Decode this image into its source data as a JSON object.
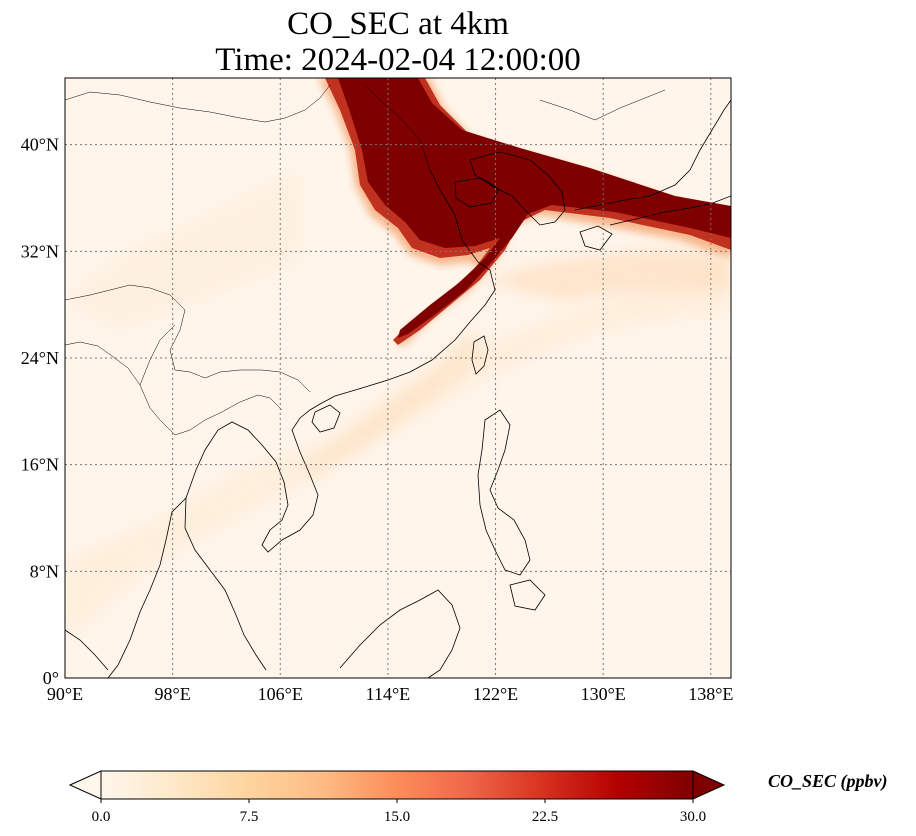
{
  "title": {
    "line1": "CO_SEC at 4km",
    "line2": "Time: 2024-02-04 12:00:00"
  },
  "map": {
    "lon_range": [
      90,
      139.5
    ],
    "lat_range": [
      0,
      45
    ],
    "lon_ticks": [
      "90°E",
      "98°E",
      "106°E",
      "114°E",
      "122°E",
      "130°E",
      "138°E"
    ],
    "lat_ticks": [
      "0°",
      "8°N",
      "16°N",
      "24°N",
      "32°N",
      "40°N"
    ],
    "gridlines": "dotted",
    "colormap": "OrRd",
    "plume_color": "#7f0000",
    "background_color": "#fff5eb"
  },
  "colorbar": {
    "label": "CO_SEC (ppbv)",
    "min": 0.0,
    "max": 30.0,
    "ticks": [
      "0.0",
      "7.5",
      "15.0",
      "22.5",
      "30.0"
    ],
    "extend": "both",
    "colors": [
      "#fff7ec",
      "#fee8c8",
      "#fdd49e",
      "#fdbb84",
      "#fc8d59",
      "#ef6548",
      "#d7301f",
      "#b30000",
      "#7f0000"
    ]
  }
}
